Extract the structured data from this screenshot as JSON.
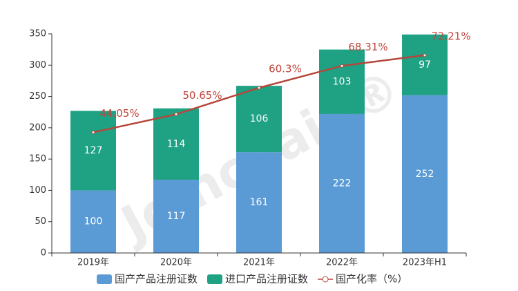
{
  "chart_data": {
    "type": "bar-line",
    "categories": [
      "2019年",
      "2020年",
      "2021年",
      "2022年",
      "2023年H1"
    ],
    "series": [
      {
        "name": "国产产品注册证数",
        "color": "#5b9bd5",
        "values": [
          100,
          117,
          161,
          222,
          252
        ]
      },
      {
        "name": "进口产品注册证数",
        "color": "#1fa184",
        "values": [
          127,
          114,
          106,
          103,
          97
        ]
      },
      {
        "name": "国产化率（%）",
        "color": "#b5473a",
        "axis": "y2",
        "values": [
          44.05,
          50.65,
          60.3,
          68.31,
          72.21
        ],
        "value_labels": [
          "44.05%",
          "50.65%",
          "60.3%",
          "68.31%",
          "72.21%"
        ]
      }
    ],
    "ylim": [
      0,
      350
    ],
    "yticks": [
      0,
      50,
      100,
      150,
      200,
      250,
      300,
      350
    ],
    "y2lim": [
      0,
      80
    ],
    "watermark": "Joinchain®"
  }
}
